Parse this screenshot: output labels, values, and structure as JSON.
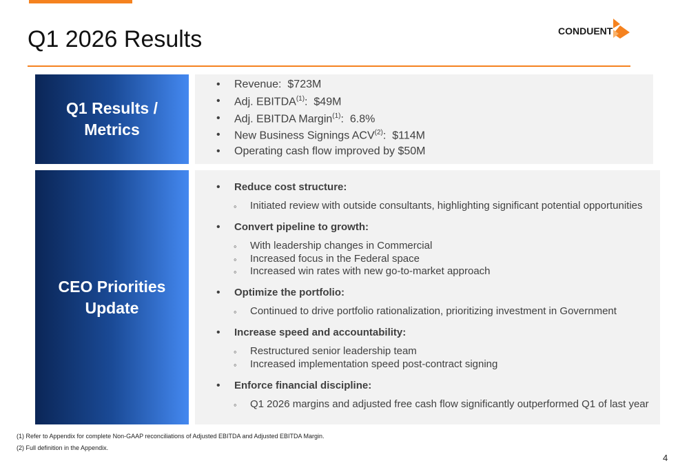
{
  "header": {
    "title": "Q1 2026 Results",
    "logo": "CONDUENT"
  },
  "metrics": {
    "heading": "Q1 Results / Metrics",
    "items": [
      {
        "label": "Revenue:",
        "value": "$723M"
      },
      {
        "label": "Adj. EBITDA",
        "note": "(1)",
        "after": ":",
        "value": "$49M"
      },
      {
        "label": "Adj. EBITDA Margin",
        "note": "(1)",
        "after": ":",
        "value": "6.8%"
      },
      {
        "label": "New Business Signings ACV",
        "note": "(2)",
        "after": ":",
        "value": "$114M"
      },
      {
        "label": "Operating cash flow improved by $50M"
      }
    ]
  },
  "priorities": {
    "heading": "CEO Priorities Update",
    "items": [
      {
        "title": "Reduce cost structure:",
        "details": [
          "Initiated review with outside consultants, highlighting significant potential opportunities"
        ]
      },
      {
        "title": "Convert pipeline to growth:",
        "details": [
          "With leadership changes in Commercial",
          "Increased focus in the Federal space",
          "Increased win rates with new go-to-market approach"
        ]
      },
      {
        "title": "Optimize the portfolio:",
        "details": [
          "Continued to drive portfolio rationalization, prioritizing investment in Government"
        ]
      },
      {
        "title": "Increase speed and accountability:",
        "details": [
          "Restructured senior leadership team",
          "Increased implementation speed post-contract signing"
        ]
      },
      {
        "title": "Enforce financial discipline:",
        "details": [
          "Q1 2026 margins and adjusted free cash flow significantly outperformed Q1 of last year"
        ]
      }
    ]
  },
  "footnotes": [
    "(1) Refer to Appendix for complete Non-GAAP reconciliations of Adjusted EBITDA and Adjusted EBITDA Margin.",
    "(2) Full definition in the Appendix."
  ],
  "page_number": 4
}
